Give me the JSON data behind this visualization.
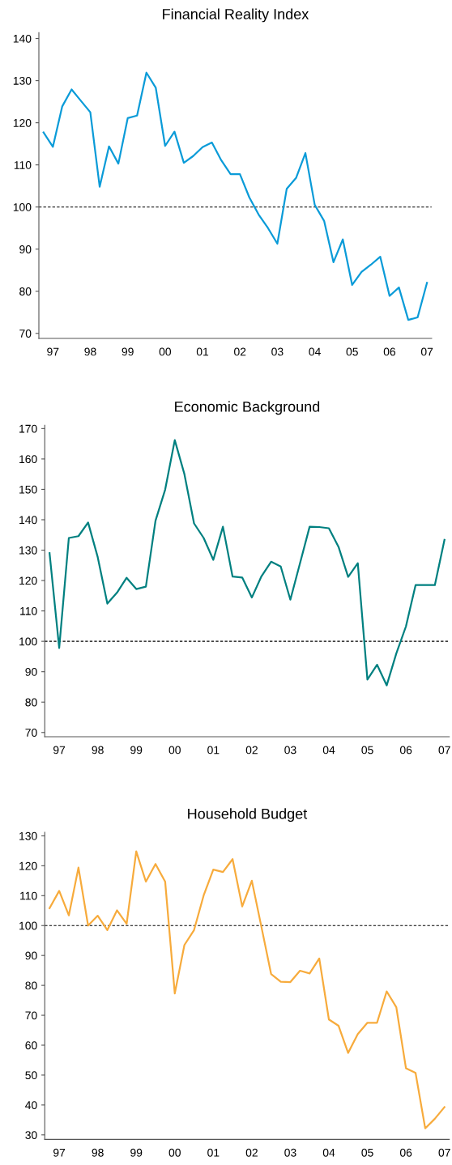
{
  "chart_data": [
    {
      "type": "line",
      "title": "Financial Reality Index",
      "categories": [
        null,
        "97",
        null,
        null,
        null,
        "98",
        null,
        null,
        null,
        "99",
        null,
        null,
        null,
        "00",
        null,
        null,
        null,
        "01",
        null,
        null,
        null,
        "02",
        null,
        null,
        null,
        "03",
        null,
        null,
        null,
        "04",
        null,
        null,
        null,
        "05",
        null,
        null,
        null,
        "06",
        null,
        null,
        null,
        "07"
      ],
      "series": [
        {
          "color": "#0a9bd8",
          "values": [
            117.7,
            114.3,
            123.9,
            127.9,
            125.2,
            122.5,
            104.8,
            114.4,
            110.3,
            121.1,
            121.7,
            131.9,
            128.3,
            114.5,
            117.9,
            110.5,
            112.1,
            114.2,
            115.3,
            111.1,
            107.8,
            107.8,
            102.3,
            98.2,
            95.0,
            91.3,
            104.3,
            106.9,
            112.8,
            100.5,
            96.7,
            86.9,
            92.3,
            81.5,
            84.6,
            86.3,
            88.2,
            78.9,
            80.9,
            73.2,
            73.8,
            82.0
          ]
        }
      ],
      "ylim": [
        68.8,
        141.4
      ],
      "yticks": [
        70,
        80,
        90,
        100,
        110,
        120,
        130,
        140
      ],
      "ref_lines": [
        {
          "axis": "y",
          "value": 100,
          "color": "#000000",
          "line_style": "dashed"
        }
      ]
    },
    {
      "type": "line",
      "title": "Economic Background",
      "categories": [
        null,
        "97",
        null,
        null,
        null,
        "98",
        null,
        null,
        null,
        "99",
        null,
        null,
        null,
        "00",
        null,
        null,
        null,
        "01",
        null,
        null,
        null,
        "02",
        null,
        null,
        null,
        "03",
        null,
        null,
        null,
        "04",
        null,
        null,
        null,
        "05",
        null,
        null,
        null,
        "06",
        null,
        null,
        null,
        "07"
      ],
      "series": [
        {
          "color": "#008080",
          "values": [
            129.0,
            97.8,
            134.0,
            134.6,
            139.1,
            127.7,
            112.4,
            116.0,
            120.9,
            117.2,
            118.0,
            139.7,
            149.9,
            166.2,
            155.0,
            138.8,
            134.0,
            126.8,
            137.7,
            121.3,
            121.0,
            114.4,
            121.4,
            126.2,
            124.6,
            113.7,
            125.7,
            137.7,
            137.6,
            137.2,
            131.1,
            121.2,
            125.7,
            87.4,
            92.3,
            85.5,
            96.0,
            104.9,
            118.5,
            118.5,
            118.5,
            133.4
          ]
        }
      ],
      "ylim": [
        68.6,
        171.1
      ],
      "yticks": [
        70,
        80,
        90,
        100,
        110,
        120,
        130,
        140,
        150,
        160,
        170
      ],
      "ref_lines": [
        {
          "axis": "y",
          "value": 100,
          "color": "#000000",
          "line_style": "dashed"
        }
      ]
    },
    {
      "type": "line",
      "title": "Household Budget",
      "categories": [
        null,
        "97",
        null,
        null,
        null,
        "98",
        null,
        null,
        null,
        "99",
        null,
        null,
        null,
        "00",
        null,
        null,
        null,
        "01",
        null,
        null,
        null,
        "02",
        null,
        null,
        null,
        "03",
        null,
        null,
        null,
        "04",
        null,
        null,
        null,
        "05",
        null,
        null,
        null,
        "06",
        null,
        null,
        null,
        "07"
      ],
      "series": [
        {
          "color": "#f7ab3c",
          "values": [
            105.8,
            111.6,
            103.4,
            119.4,
            100.0,
            103.3,
            98.5,
            105.1,
            100.6,
            124.8,
            114.7,
            120.6,
            114.7,
            77.3,
            93.5,
            98.5,
            110.1,
            118.7,
            117.9,
            122.2,
            106.4,
            115.0,
            99.5,
            83.8,
            81.2,
            81.1,
            84.9,
            84.0,
            89.0,
            68.6,
            66.5,
            57.4,
            63.7,
            67.5,
            67.5,
            78.0,
            72.7,
            52.3,
            50.7,
            32.2,
            35.4,
            39.3
          ]
        }
      ],
      "ylim": [
        28.5,
        131.2
      ],
      "yticks": [
        30,
        40,
        50,
        60,
        70,
        80,
        90,
        100,
        110,
        120,
        130
      ],
      "ref_lines": [
        {
          "axis": "y",
          "value": 100,
          "color": "#000000",
          "line_style": "dashed"
        }
      ]
    }
  ]
}
